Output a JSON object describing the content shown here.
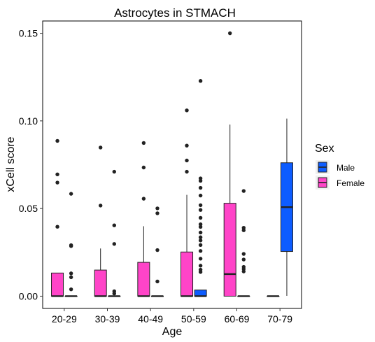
{
  "chart_data": {
    "type": "boxplot",
    "title": "Astrocytes in STMACH",
    "xlabel": "Age",
    "ylabel": "xCell score",
    "categories": [
      "20-29",
      "30-39",
      "40-49",
      "50-59",
      "60-69",
      "70-79"
    ],
    "y_ticks": [
      "0.00",
      "0.05",
      "0.10",
      "0.15"
    ],
    "y_tick_values": [
      0,
      0.05,
      0.1,
      0.15
    ],
    "ylim": [
      -0.007,
      0.157
    ],
    "legend": {
      "title": "Sex",
      "position": "right",
      "entries": [
        {
          "label": "Male",
          "color": "#0d5cff"
        },
        {
          "label": "Female",
          "color": "#ff44c8"
        }
      ]
    },
    "grid": false,
    "series": [
      {
        "name": "Female",
        "color": "#ff44c8",
        "boxes": [
          {
            "category": "20-29",
            "min": 0,
            "q1": 0,
            "median": 0,
            "q3": 0.0132,
            "max": 0.0132,
            "outliers": [
              0.0886,
              0.0695,
              0.0648,
              0.0396
            ]
          },
          {
            "category": "30-39",
            "min": 0,
            "q1": 0,
            "median": 0,
            "q3": 0.0149,
            "max": 0.0272,
            "outliers": [
              0.0848,
              0.0517
            ]
          },
          {
            "category": "40-49",
            "min": 0,
            "q1": 0,
            "median": 0,
            "q3": 0.0193,
            "max": 0.0399,
            "outliers": [
              0.0874,
              0.0734,
              0.0556
            ]
          },
          {
            "category": "50-59",
            "min": 0,
            "q1": 0,
            "median": 0,
            "q3": 0.0252,
            "max": 0.0578,
            "outliers": [
              0.106,
              0.0859,
              0.0774,
              0.071
            ]
          },
          {
            "category": "60-69",
            "min": 0,
            "q1": 0,
            "median": 0.0126,
            "q3": 0.053,
            "max": 0.0979,
            "outliers": [
              0.15
            ]
          },
          {
            "category": "70-79",
            "min": 0,
            "q1": 0,
            "median": 0,
            "q3": 0,
            "max": 0,
            "outliers": []
          }
        ]
      },
      {
        "name": "Male",
        "color": "#0d5cff",
        "boxes": [
          {
            "category": "20-29",
            "min": 0,
            "q1": 0,
            "median": 0,
            "q3": 0,
            "max": 0,
            "outliers": [
              0.0584,
              0.0291,
              0.0286,
              0.013,
              0.0108,
              0.0039
            ]
          },
          {
            "category": "30-39",
            "min": 0,
            "q1": 0,
            "median": 0,
            "q3": 0,
            "max": 0,
            "outliers": [
              0.071,
              0.0404,
              0.0298,
              0.0028,
              0.0015
            ]
          },
          {
            "category": "40-49",
            "min": 0,
            "q1": 0,
            "median": 0,
            "q3": 0,
            "max": 0,
            "outliers": [
              0.0501,
              0.0473,
              0.0263,
              0.0084
            ]
          },
          {
            "category": "50-59",
            "min": 0,
            "q1": 0,
            "median": 0,
            "q3": 0.0035,
            "max": 0.0035,
            "outliers": [
              0.1228,
              0.0672,
              0.0658,
              0.0618,
              0.0574,
              0.0519,
              0.0492,
              0.0447,
              0.041,
              0.0395,
              0.0363,
              0.0336,
              0.0318,
              0.0292,
              0.0258,
              0.0214,
              0.0174,
              0.0151,
              0.0138
            ]
          },
          {
            "category": "60-69",
            "min": 0,
            "q1": 0,
            "median": 0,
            "q3": 0,
            "max": 0,
            "outliers": [
              0.06,
              0.039,
              0.0376,
              0.0241,
              0.0209,
              0.0167,
              0.0155,
              0.0141
            ]
          },
          {
            "category": "70-79",
            "min": 0.0002,
            "q1": 0.0255,
            "median": 0.0508,
            "q3": 0.0761,
            "max": 0.1013,
            "outliers": []
          }
        ]
      }
    ]
  }
}
